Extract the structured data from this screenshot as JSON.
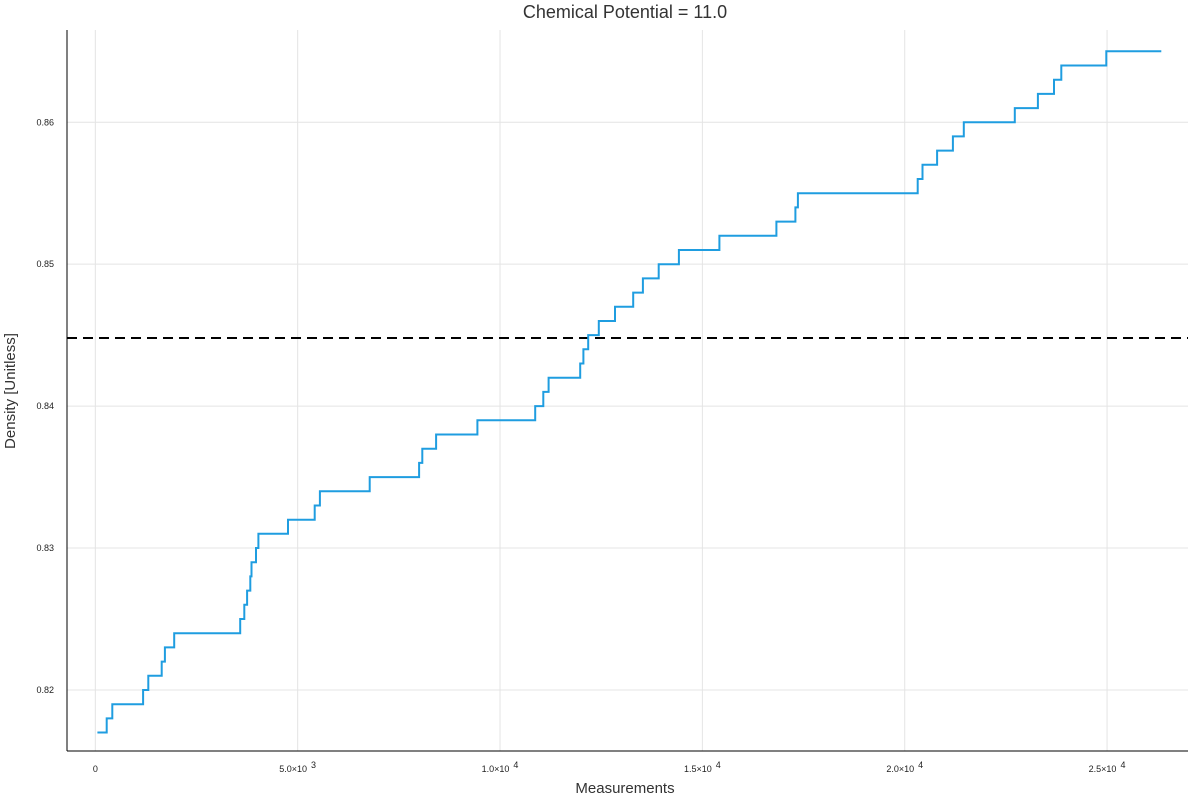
{
  "chart_data": {
    "type": "line",
    "title": "Chemical Potential = 11.0",
    "xlabel": "Measurements",
    "ylabel": "Density [Unitless]",
    "xlim": [
      -700,
      27000
    ],
    "ylim": [
      0.8157,
      0.8665
    ],
    "x_ticks": [
      {
        "value": 0,
        "label": "0"
      },
      {
        "value": 5000,
        "label": "5.0×10",
        "exp": "3"
      },
      {
        "value": 10000,
        "label": "1.0×10",
        "exp": "4"
      },
      {
        "value": 15000,
        "label": "1.5×10",
        "exp": "4"
      },
      {
        "value": 20000,
        "label": "2.0×10",
        "exp": "4"
      },
      {
        "value": 25000,
        "label": "2.5×10",
        "exp": "4"
      }
    ],
    "y_ticks": [
      {
        "value": 0.82,
        "label": "0.82"
      },
      {
        "value": 0.83,
        "label": "0.83"
      },
      {
        "value": 0.84,
        "label": "0.84"
      },
      {
        "value": 0.85,
        "label": "0.85"
      },
      {
        "value": 0.86,
        "label": "0.86"
      }
    ],
    "grid": true,
    "series": [
      {
        "color": "#1f9de0",
        "step": true,
        "points": [
          [
            50,
            0.817
          ],
          [
            280,
            0.818
          ],
          [
            420,
            0.819
          ],
          [
            1180,
            0.82
          ],
          [
            1310,
            0.821
          ],
          [
            1640,
            0.822
          ],
          [
            1720,
            0.823
          ],
          [
            1950,
            0.824
          ],
          [
            3580,
            0.825
          ],
          [
            3680,
            0.826
          ],
          [
            3750,
            0.827
          ],
          [
            3830,
            0.828
          ],
          [
            3860,
            0.829
          ],
          [
            3970,
            0.83
          ],
          [
            4030,
            0.831
          ],
          [
            4760,
            0.832
          ],
          [
            5420,
            0.833
          ],
          [
            5550,
            0.834
          ],
          [
            6780,
            0.835
          ],
          [
            8000,
            0.836
          ],
          [
            8080,
            0.837
          ],
          [
            8420,
            0.838
          ],
          [
            9440,
            0.839
          ],
          [
            10870,
            0.84
          ],
          [
            11070,
            0.841
          ],
          [
            11200,
            0.842
          ],
          [
            11980,
            0.843
          ],
          [
            12060,
            0.844
          ],
          [
            12180,
            0.845
          ],
          [
            12440,
            0.846
          ],
          [
            12840,
            0.847
          ],
          [
            13290,
            0.848
          ],
          [
            13530,
            0.849
          ],
          [
            13920,
            0.85
          ],
          [
            14420,
            0.851
          ],
          [
            15420,
            0.852
          ],
          [
            16830,
            0.853
          ],
          [
            17300,
            0.854
          ],
          [
            17360,
            0.855
          ],
          [
            20320,
            0.856
          ],
          [
            20440,
            0.857
          ],
          [
            20800,
            0.858
          ],
          [
            21190,
            0.859
          ],
          [
            21460,
            0.86
          ],
          [
            22720,
            0.861
          ],
          [
            23290,
            0.862
          ],
          [
            23690,
            0.863
          ],
          [
            23870,
            0.864
          ],
          [
            24980,
            0.865
          ],
          [
            26340,
            0.865
          ]
        ]
      }
    ],
    "reference_line": {
      "y": 0.8448,
      "style": "dashed",
      "color": "#000000"
    }
  }
}
